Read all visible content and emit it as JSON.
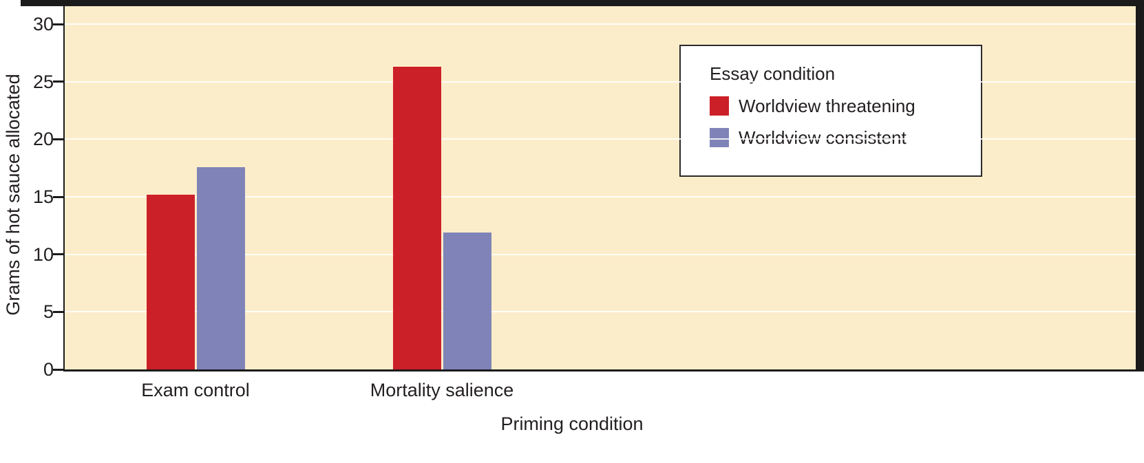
{
  "chart_data": {
    "type": "bar",
    "title": "",
    "categories": [
      "Exam control",
      "Mortality salience"
    ],
    "series": [
      {
        "name": "Worldview threatening",
        "color": "#cc2028",
        "values": [
          15.2,
          26.3
        ]
      },
      {
        "name": "Worldview consistent",
        "color": "#7f83b7",
        "values": [
          17.6,
          11.9
        ]
      }
    ],
    "legend": {
      "title": "Essay condition",
      "position": "top-right"
    },
    "xlabel": "Priming condition",
    "ylabel": "Grams of hot sauce allocated",
    "ylim": [
      0,
      30
    ],
    "yticks": [
      0,
      5,
      10,
      15,
      20,
      25,
      30
    ],
    "grid": "horizontal",
    "plot_background": "#fcedca",
    "colors": {
      "threatening": "#cc2028",
      "consistent": "#7f83b7",
      "axis": "#1b1b1b",
      "text": "#231f20"
    }
  }
}
